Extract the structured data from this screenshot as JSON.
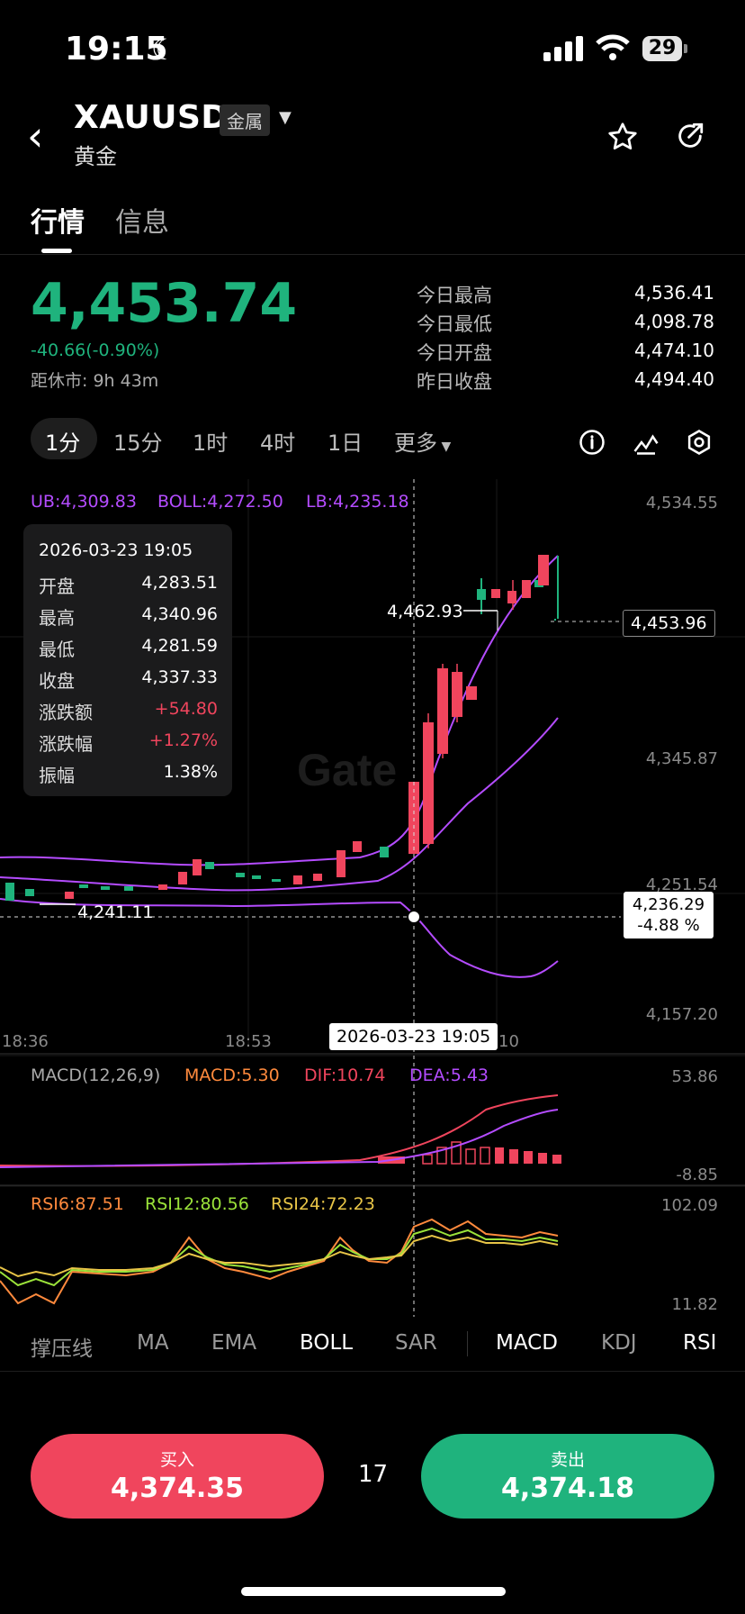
{
  "status_bar": {
    "time": "19:15",
    "battery": "29"
  },
  "header": {
    "symbol": "XAUUSD",
    "badge": "金属",
    "name": "黄金"
  },
  "tabs": [
    {
      "label": "行情"
    },
    {
      "label": "信息"
    }
  ],
  "quote": {
    "price": "4,453.74",
    "change": "-40.66(-0.90%)",
    "market_close": "距休市: 9h 43m",
    "stats": [
      {
        "label": "今日最高",
        "value": "4,536.41"
      },
      {
        "label": "今日最低",
        "value": "4,098.78"
      },
      {
        "label": "今日开盘",
        "value": "4,474.10"
      },
      {
        "label": "昨日收盘",
        "value": "4,494.40"
      }
    ]
  },
  "intervals": [
    "1分",
    "15分",
    "1时",
    "4时",
    "1日",
    "更多"
  ],
  "chart": {
    "boll_labels": {
      "ub": "UB:4,309.83",
      "boll": "BOLL:4,272.50",
      "lb": "LB:4,235.18"
    },
    "y_axis": [
      "4,534.55",
      "4,345.87",
      "4,251.54",
      "4,157.20"
    ],
    "time_labels": [
      "18:36",
      "18:53",
      "10"
    ],
    "tooltip": {
      "date": "2026-03-23 19:05",
      "rows": [
        {
          "label": "开盘",
          "value": "4,283.51"
        },
        {
          "label": "最高",
          "value": "4,340.96"
        },
        {
          "label": "最低",
          "value": "4,281.59"
        },
        {
          "label": "收盘",
          "value": "4,337.33"
        },
        {
          "label": "涨跌额",
          "value": "+54.80"
        },
        {
          "label": "涨跌幅",
          "value": "+1.27%"
        },
        {
          "label": "振幅",
          "value": "1.38%"
        }
      ]
    },
    "high_marker": "4,462.93",
    "low_marker": "4,241.11",
    "current_price_box": "4,453.96",
    "crosshair_price": "4,236.29",
    "crosshair_pct": "-4.88 %",
    "crosshair_date": "2026-03-23 19:05",
    "watermark": "Gate",
    "macd": {
      "title": "MACD(12,26,9)",
      "macd": "MACD:5.30",
      "dif": "DIF:10.74",
      "dea": "DEA:5.43",
      "max": "53.86",
      "min": "-8.85"
    },
    "rsi": {
      "rsi6": "RSI6:87.51",
      "rsi12": "RSI12:80.56",
      "rsi24": "RSI24:72.23",
      "max": "102.09",
      "min": "11.82"
    },
    "colors": {
      "up": "#f0455d",
      "down": "#1fb37d",
      "boll": "#b44cff"
    }
  },
  "indicators": [
    "撑压线",
    "MA",
    "EMA",
    "BOLL",
    "SAR",
    "MACD",
    "KDJ",
    "RSI"
  ],
  "trade": {
    "buy_label": "买入",
    "buy_price": "4,374.35",
    "spread": "17",
    "sell_label": "卖出",
    "sell_price": "4,374.18"
  }
}
